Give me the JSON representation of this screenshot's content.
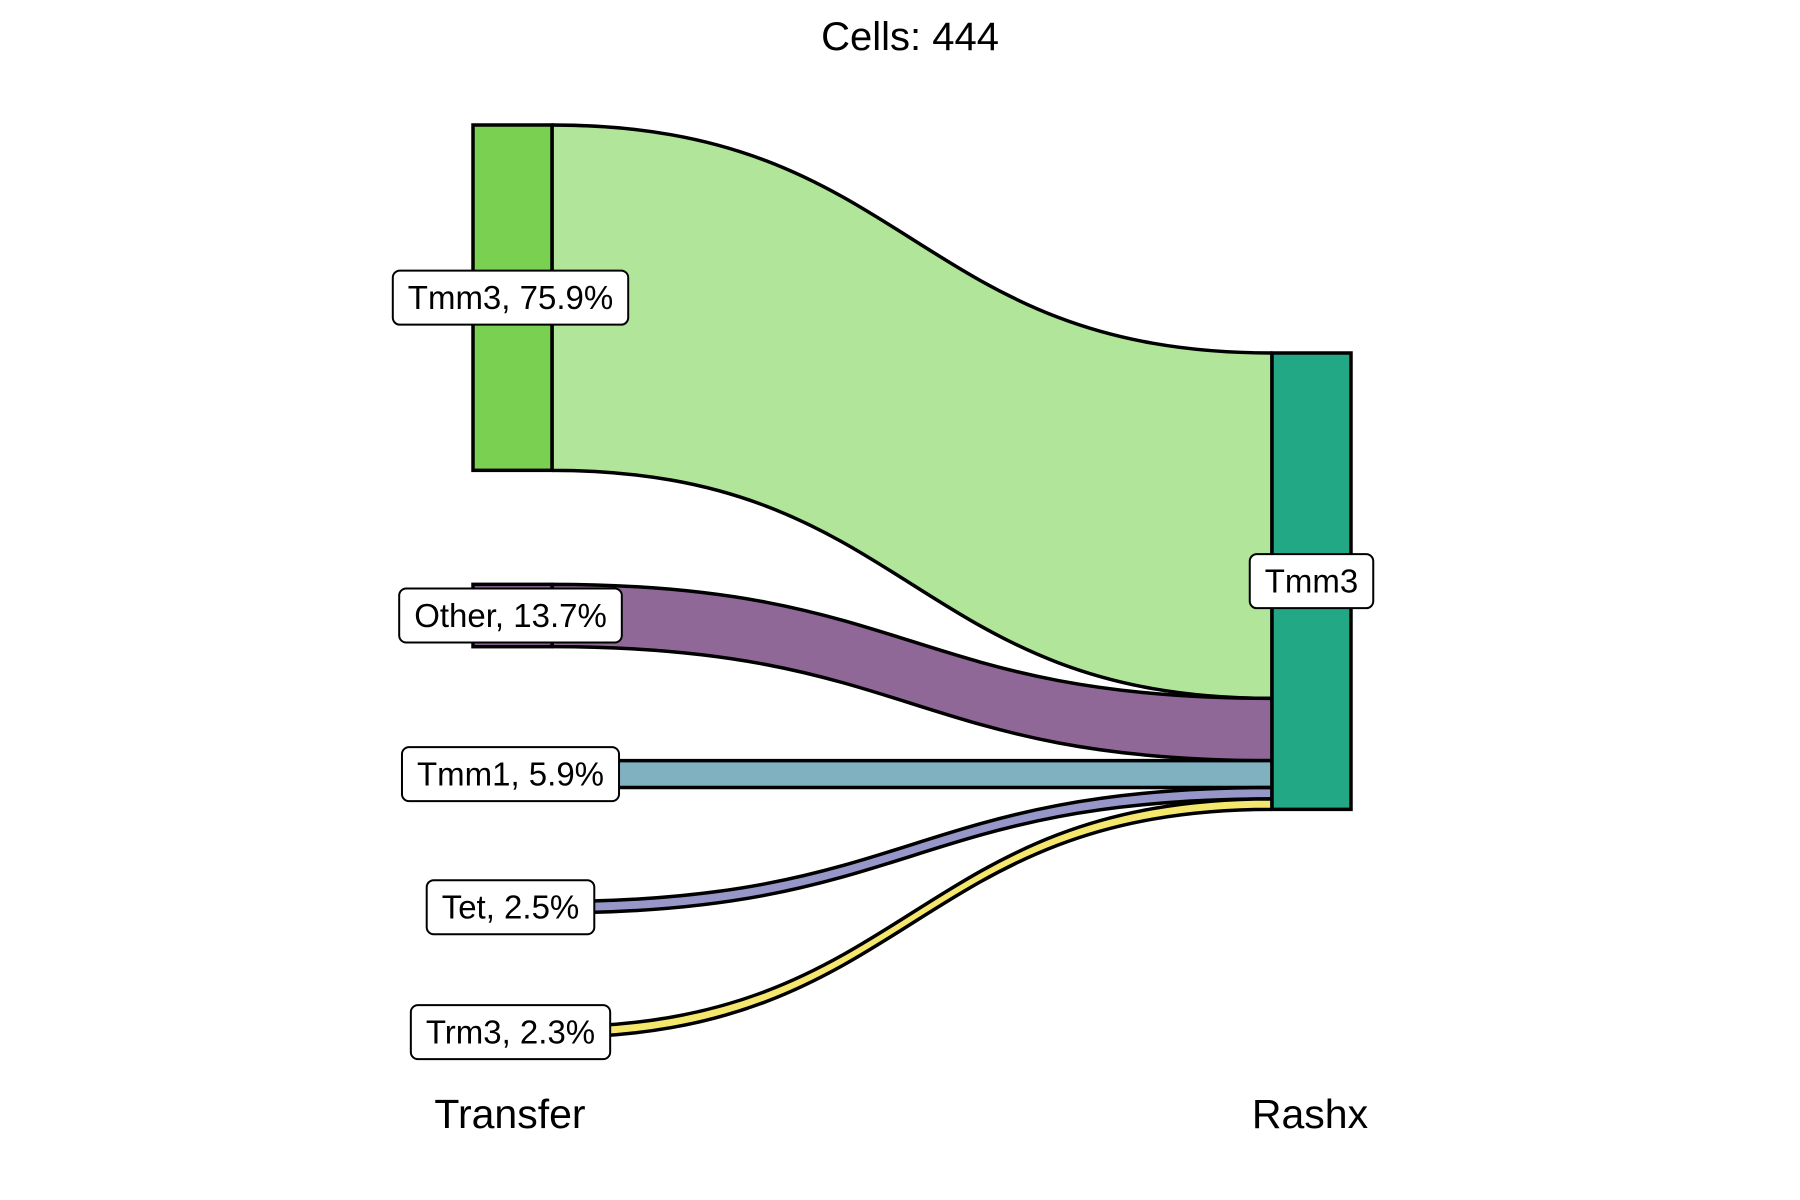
{
  "chart_data": {
    "type": "sankey",
    "title": "Cells:  444",
    "total_cells": 444,
    "axes": [
      "Transfer",
      "Rashx"
    ],
    "source_nodes": [
      {
        "name": "Tmm3",
        "percent": 75.9,
        "label": "Tmm3, 75.9%",
        "color": "#7ad151"
      },
      {
        "name": "Other",
        "percent": 13.7,
        "label": "Other, 13.7%",
        "color": "#8f6898"
      },
      {
        "name": "Tmm1",
        "percent": 5.9,
        "label": "Tmm1, 5.9%",
        "color": "#7fb1c1"
      },
      {
        "name": "Tet",
        "percent": 2.5,
        "label": "Tet, 2.5%",
        "color": "#9696c8"
      },
      {
        "name": "Trm3",
        "percent": 2.3,
        "label": "Trm3, 2.3%",
        "color": "#f5e66e"
      }
    ],
    "target_nodes": [
      {
        "name": "Tmm3",
        "percent": 100,
        "label": "Tmm3",
        "color": "#22a884"
      }
    ],
    "flows": [
      {
        "from": "Tmm3",
        "to": "Tmm3",
        "percent": 75.9,
        "color": "#b0e59a"
      },
      {
        "from": "Other",
        "to": "Tmm3",
        "percent": 13.7,
        "color": "#8f6898"
      },
      {
        "from": "Tmm1",
        "to": "Tmm3",
        "percent": 5.9,
        "color": "#7fb1c1"
      },
      {
        "from": "Tet",
        "to": "Tmm3",
        "percent": 2.5,
        "color": "#9696c8"
      },
      {
        "from": "Trm3",
        "to": "Tmm3",
        "percent": 2.3,
        "color": "#f5e66e"
      }
    ]
  }
}
